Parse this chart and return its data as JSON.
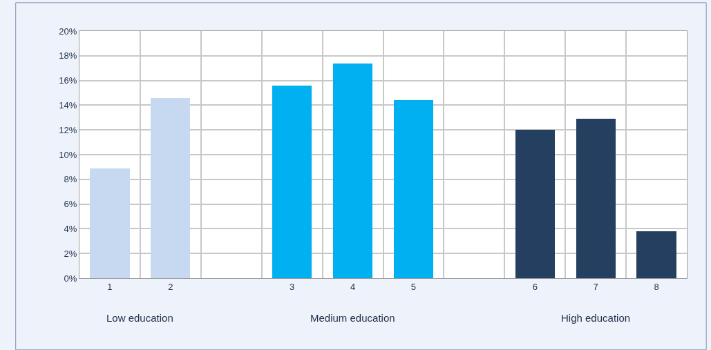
{
  "chart_data": {
    "type": "bar",
    "categories": [
      "1",
      "2",
      null,
      "3",
      "4",
      "5",
      null,
      "6",
      "7",
      "8"
    ],
    "values": [
      8.9,
      14.6,
      null,
      15.6,
      17.4,
      14.4,
      null,
      12.0,
      12.9,
      3.8
    ],
    "colors": [
      "#c6d9f0",
      "#c6d9f0",
      "#c6d9f0",
      "#00b0f0",
      "#00b0f0",
      "#00b0f0",
      "#243f60",
      "#243f60",
      "#243f60",
      "#243f60"
    ],
    "ylim": [
      0,
      20
    ],
    "yticks": [
      {
        "value": 0,
        "label": "0%"
      },
      {
        "value": 2,
        "label": "2%"
      },
      {
        "value": 4,
        "label": "4%"
      },
      {
        "value": 6,
        "label": "6%"
      },
      {
        "value": 8,
        "label": "8%"
      },
      {
        "value": 10,
        "label": "10%"
      },
      {
        "value": 12,
        "label": "12%"
      },
      {
        "value": 14,
        "label": "14%"
      },
      {
        "value": 16,
        "label": "16%"
      },
      {
        "value": 18,
        "label": "18%"
      },
      {
        "value": 20,
        "label": "20%"
      }
    ],
    "annotations": [
      "Low education",
      "Medium education",
      "High education"
    ],
    "grid": true,
    "legend": false
  }
}
